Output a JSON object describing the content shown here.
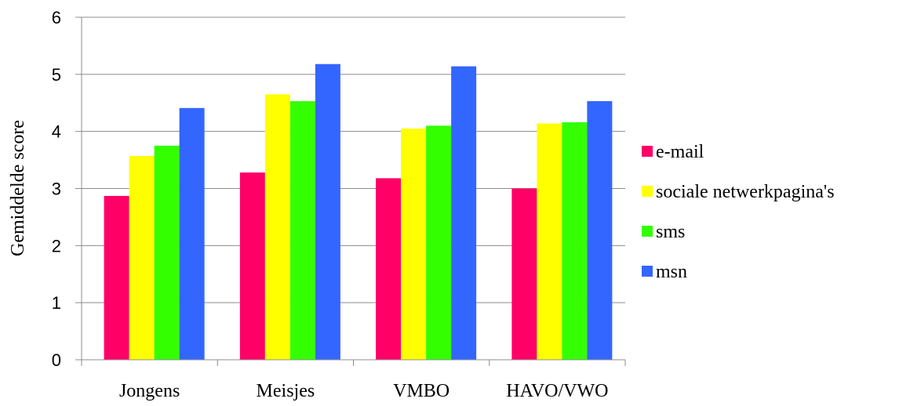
{
  "chart_data": {
    "type": "bar",
    "title": "",
    "xlabel": "",
    "ylabel": "Gemiddelde score",
    "ylim": [
      0,
      6
    ],
    "yticks": [
      0,
      1,
      2,
      3,
      4,
      5,
      6
    ],
    "grid": true,
    "legend_position": "right",
    "categories": [
      "Jongens",
      "Meisjes",
      "VMBO",
      "HAVO/VWO"
    ],
    "series": [
      {
        "name": "e-mail",
        "color": "#ff0066",
        "values": [
          2.87,
          3.28,
          3.18,
          3.0
        ]
      },
      {
        "name": "sociale netwerkpagina's",
        "color": "#ffff00",
        "values": [
          3.57,
          4.65,
          4.05,
          4.14
        ]
      },
      {
        "name": "sms",
        "color": "#33ff00",
        "values": [
          3.75,
          4.53,
          4.1,
          4.16
        ]
      },
      {
        "name": "msn",
        "color": "#3366ff",
        "values": [
          4.41,
          5.18,
          5.14,
          4.53
        ]
      }
    ]
  }
}
